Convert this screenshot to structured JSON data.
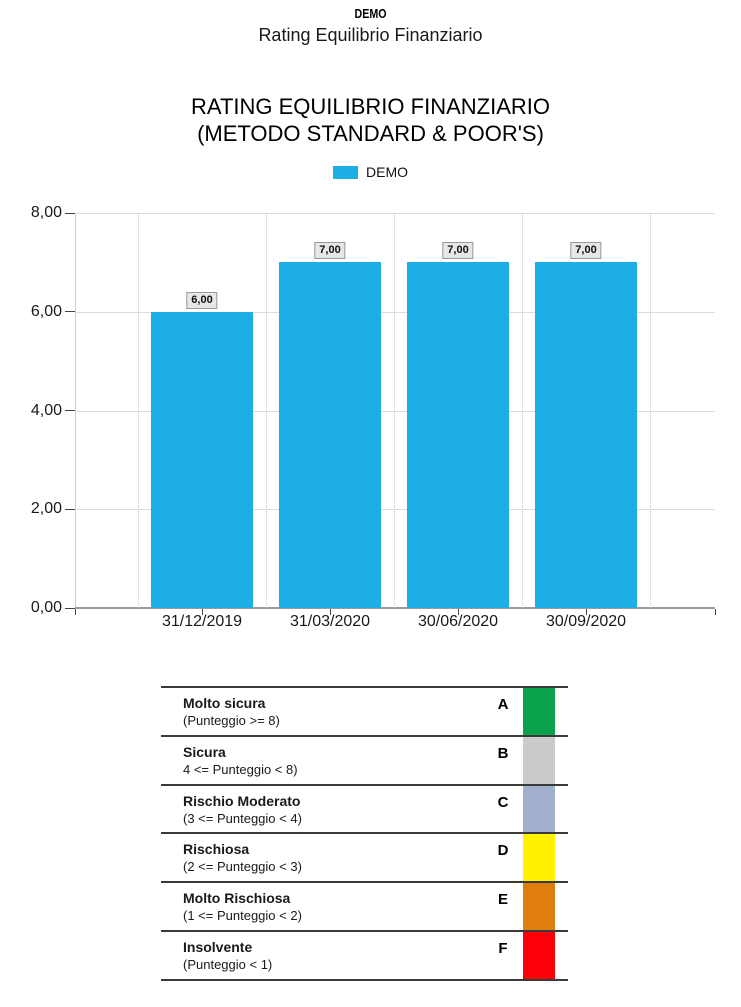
{
  "header": {
    "watermark": "DEMO",
    "title": "Rating Equilibrio Finanziario"
  },
  "chart": {
    "title_line1": "RATING EQUILIBRIO FINANZIARIO",
    "title_line2": "(METODO STANDARD & POOR'S)",
    "legend_label": "DEMO",
    "bar_color": "#1CAEE4"
  },
  "chart_data": {
    "type": "bar",
    "title": "RATING EQUILIBRIO FINANZIARIO (METODO STANDARD & POOR'S)",
    "legend": [
      "DEMO"
    ],
    "legend_position": "top",
    "categories": [
      "31/12/2019",
      "31/03/2020",
      "30/06/2020",
      "30/09/2020"
    ],
    "values": [
      6,
      7,
      7,
      7
    ],
    "value_labels": [
      "6,00",
      "7,00",
      "7,00",
      "7,00"
    ],
    "y_ticks": [
      "0,00",
      "2,00",
      "4,00",
      "6,00",
      "8,00"
    ],
    "ylim": [
      0,
      8
    ],
    "xlabel": "",
    "ylabel": "",
    "grid": true
  },
  "rating_scale": {
    "rows": [
      {
        "label": "Molto sicura",
        "range": "(Punteggio >= 8)",
        "grade": "A",
        "color": "#0AA24B"
      },
      {
        "label": "Sicura",
        "range": "4 <= Punteggio < 8)",
        "grade": "B",
        "color": "#CBCBCB"
      },
      {
        "label": "Rischio Moderato",
        "range": "(3 <= Punteggio < 4)",
        "grade": "C",
        "color": "#A1B1CD"
      },
      {
        "label": "Rischiosa",
        "range": "(2 <= Punteggio < 3)",
        "grade": "D",
        "color": "#FEF200"
      },
      {
        "label": "Molto Rischiosa",
        "range": "(1 <= Punteggio < 2)",
        "grade": "E",
        "color": "#DF7D11"
      },
      {
        "label": "Insolvente",
        "range": "(Punteggio < 1)",
        "grade": "F",
        "color": "#FB0007"
      }
    ]
  }
}
